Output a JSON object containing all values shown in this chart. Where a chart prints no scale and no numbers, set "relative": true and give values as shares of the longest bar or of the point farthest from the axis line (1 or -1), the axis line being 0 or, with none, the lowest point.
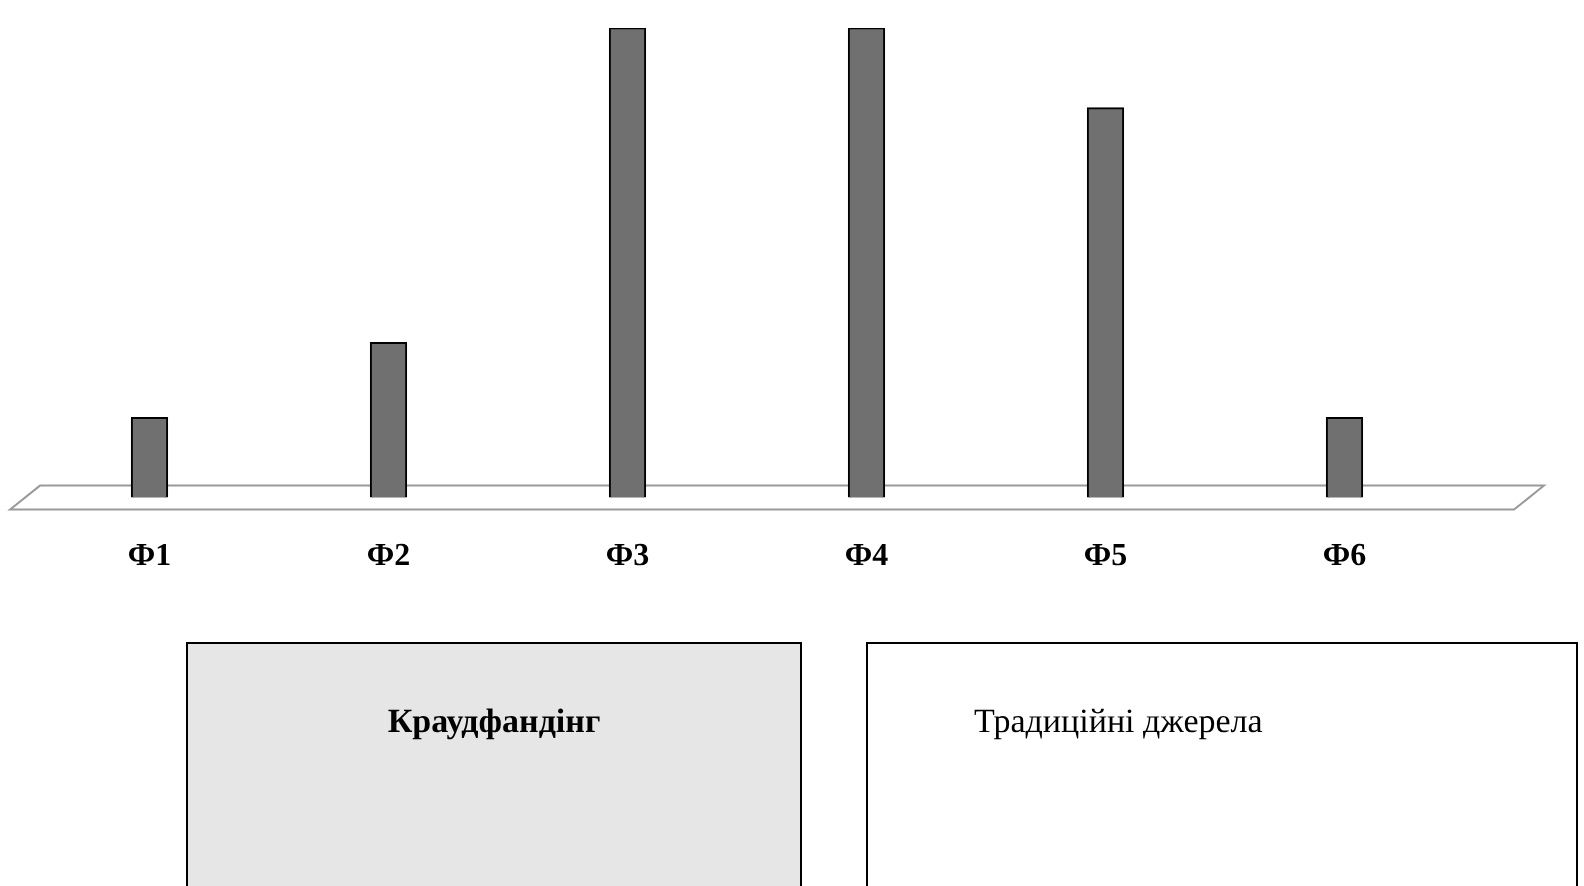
{
  "chart_data": {
    "type": "bar",
    "relative": true,
    "categories": [
      "Ф1",
      "Ф2",
      "Ф3",
      "Ф4",
      "Ф5",
      "Ф6"
    ],
    "values": [
      0.17,
      0.33,
      1,
      1,
      0.83,
      0.17
    ],
    "color": "#707070",
    "annotations": [
      "Краудфандінг",
      "Традиційні джерела"
    ]
  }
}
